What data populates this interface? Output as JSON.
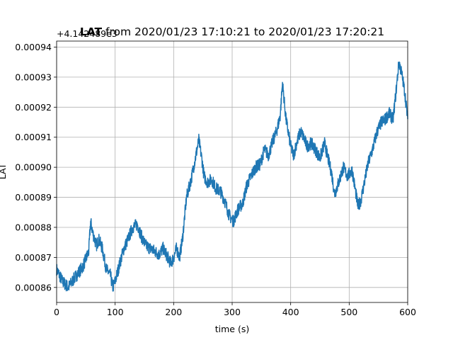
{
  "chart_data": {
    "type": "line",
    "title_bold": "LAT",
    "title_rest": " from 2020/01/23 17:10:21 to 2020/01/23 17:20:21",
    "xlabel": "time (s)",
    "ylabel": "LAT",
    "offset_text": "+4.142489e3",
    "xlim": [
      0,
      600
    ],
    "ylim": [
      0.000855,
      0.000942
    ],
    "xticks": [
      0,
      100,
      200,
      300,
      400,
      500,
      600
    ],
    "xtick_labels": [
      "0",
      "100",
      "200",
      "300",
      "400",
      "500",
      "600"
    ],
    "yticks": [
      0.00086,
      0.00087,
      0.00088,
      0.00089,
      0.0009,
      0.00091,
      0.00092,
      0.00093,
      0.00094
    ],
    "ytick_labels": [
      "0.00086",
      "0.00087",
      "0.00088",
      "0.00089",
      "0.00090",
      "0.00091",
      "0.00092",
      "0.00093",
      "0.00094"
    ],
    "grid": true,
    "line_color": "#1f77b4",
    "series": [
      {
        "x": [
          0,
          10,
          20,
          30,
          45,
          55,
          58,
          62,
          68,
          72,
          78,
          85,
          92,
          96,
          100,
          108,
          115,
          122,
          130,
          138,
          145,
          152,
          160,
          168,
          175,
          182,
          190,
          195,
          200,
          205,
          210,
          215,
          222,
          230,
          238,
          243,
          248,
          252,
          258,
          265,
          272,
          280,
          287,
          295,
          302,
          310,
          318,
          325,
          332,
          340,
          348,
          355,
          362,
          370,
          376,
          382,
          386,
          392,
          400,
          405,
          410,
          417,
          422,
          428,
          435,
          442,
          450,
          458,
          465,
          470,
          475,
          482,
          490,
          497,
          505,
          510,
          515,
          520,
          526,
          532,
          540,
          548,
          555,
          562,
          568,
          575,
          580,
          585,
          590,
          595,
          600
        ],
        "y": [
          0.000866,
          0.000862,
          0.00086,
          0.000863,
          0.000867,
          0.000872,
          0.000882,
          0.000878,
          0.000874,
          0.000876,
          0.000873,
          0.000866,
          0.000864,
          0.00086,
          0.000862,
          0.000868,
          0.000873,
          0.000876,
          0.00088,
          0.000881,
          0.000877,
          0.000874,
          0.000873,
          0.000872,
          0.000871,
          0.000873,
          0.00087,
          0.000868,
          0.00087,
          0.000873,
          0.00087,
          0.000876,
          0.00089,
          0.000896,
          0.000904,
          0.000909,
          0.000903,
          0.000897,
          0.000895,
          0.000896,
          0.000893,
          0.000892,
          0.000889,
          0.000884,
          0.000882,
          0.000886,
          0.000888,
          0.000894,
          0.000897,
          0.0009,
          0.000901,
          0.000906,
          0.000904,
          0.000909,
          0.000912,
          0.000917,
          0.000928,
          0.000916,
          0.000907,
          0.000904,
          0.000908,
          0.000912,
          0.00091,
          0.000907,
          0.000908,
          0.000906,
          0.000903,
          0.000908,
          0.000902,
          0.000898,
          0.000891,
          0.000895,
          0.0009,
          0.000897,
          0.000899,
          0.000893,
          0.000887,
          0.000889,
          0.000895,
          0.000901,
          0.000906,
          0.000912,
          0.000915,
          0.000916,
          0.000918,
          0.000916,
          0.000925,
          0.000935,
          0.000931,
          0.000925,
          0.000916
        ]
      }
    ]
  }
}
